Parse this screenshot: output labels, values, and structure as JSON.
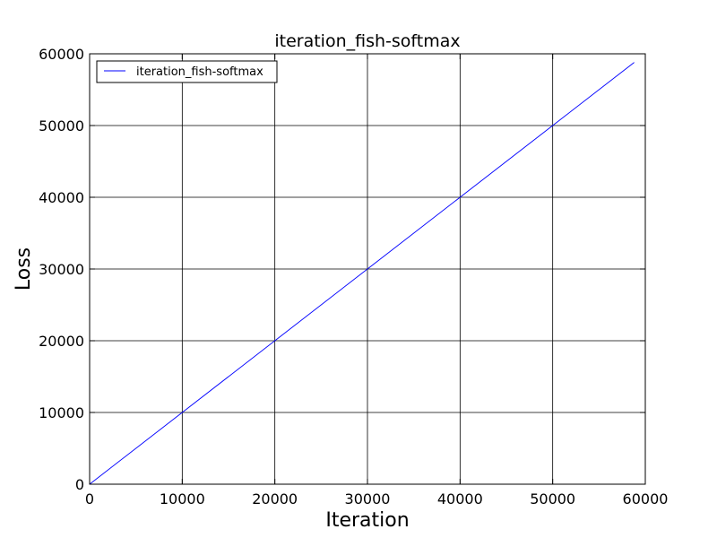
{
  "chart_data": {
    "type": "line",
    "title": "iteration_fish-softmax",
    "xlabel": "Iteration",
    "ylabel": "Loss",
    "xlim": [
      0,
      60000
    ],
    "ylim": [
      0,
      60000
    ],
    "xticks": [
      "0",
      "10000",
      "20000",
      "30000",
      "40000",
      "50000",
      "60000"
    ],
    "yticks": [
      "0",
      "10000",
      "20000",
      "30000",
      "40000",
      "50000",
      "60000"
    ],
    "grid": true,
    "legend_position": "top-left",
    "series": [
      {
        "name": "iteration_fish-softmax",
        "color": "#0000ff",
        "x": [
          0,
          10000,
          20000,
          30000,
          40000,
          50000,
          58800
        ],
        "y": [
          0,
          10000,
          20000,
          30000,
          40000,
          50000,
          58800
        ]
      }
    ]
  }
}
